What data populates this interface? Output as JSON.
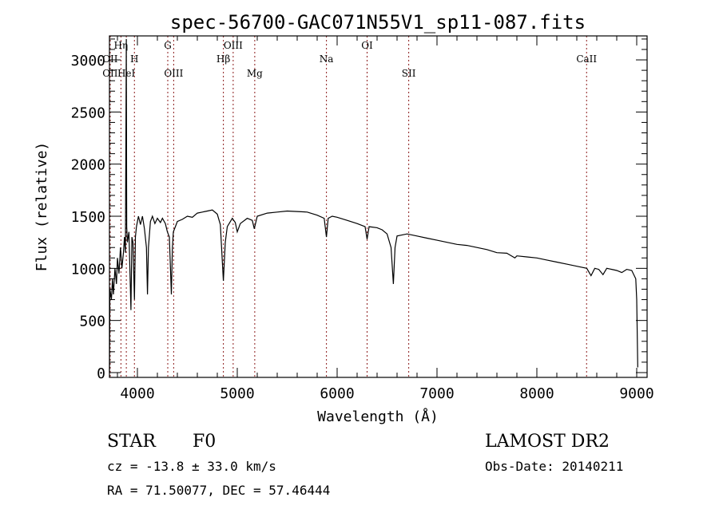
{
  "chart_data": {
    "type": "line",
    "title": "spec-56700-GAC071N55V1_sp11-087.fits",
    "xlabel": "Wavelength (Å)",
    "ylabel": "Flux (relative)",
    "xlim": [
      3720,
      9104
    ],
    "ylim": [
      -46,
      3230
    ],
    "xticks": [
      4000,
      5000,
      6000,
      7000,
      8000,
      9000
    ],
    "xtick_labels": [
      "4000",
      "5000",
      "6000",
      "7000",
      "8000",
      "9000"
    ],
    "yticks": [
      0,
      500,
      1000,
      1500,
      2000,
      2500,
      3000
    ],
    "ytick_labels": [
      "0",
      "500",
      "1000",
      "1500",
      "2000",
      "2500",
      "3000"
    ],
    "series": [
      {
        "name": "spectrum",
        "color": "#000000",
        "points": [
          [
            3720,
            0
          ],
          [
            3725,
            800
          ],
          [
            3740,
            700
          ],
          [
            3750,
            900
          ],
          [
            3760,
            750
          ],
          [
            3775,
            1000
          ],
          [
            3790,
            850
          ],
          [
            3800,
            1100
          ],
          [
            3815,
            950
          ],
          [
            3830,
            1200
          ],
          [
            3845,
            1000
          ],
          [
            3860,
            1150
          ],
          [
            3870,
            1300
          ],
          [
            3880,
            1150
          ],
          [
            3889,
            3200
          ],
          [
            3893,
            1400
          ],
          [
            3900,
            1250
          ],
          [
            3915,
            1350
          ],
          [
            3935,
            600
          ],
          [
            3945,
            1300
          ],
          [
            3955,
            1250
          ],
          [
            3970,
            700
          ],
          [
            3980,
            1300
          ],
          [
            3990,
            1400
          ],
          [
            4010,
            1500
          ],
          [
            4030,
            1420
          ],
          [
            4050,
            1500
          ],
          [
            4070,
            1380
          ],
          [
            4090,
            1200
          ],
          [
            4101,
            750
          ],
          [
            4110,
            1200
          ],
          [
            4130,
            1450
          ],
          [
            4150,
            1500
          ],
          [
            4175,
            1430
          ],
          [
            4200,
            1480
          ],
          [
            4230,
            1440
          ],
          [
            4250,
            1480
          ],
          [
            4280,
            1430
          ],
          [
            4300,
            1350
          ],
          [
            4320,
            1300
          ],
          [
            4340,
            750
          ],
          [
            4350,
            1200
          ],
          [
            4360,
            1350
          ],
          [
            4400,
            1450
          ],
          [
            4450,
            1470
          ],
          [
            4500,
            1500
          ],
          [
            4550,
            1490
          ],
          [
            4600,
            1530
          ],
          [
            4650,
            1540
          ],
          [
            4700,
            1550
          ],
          [
            4750,
            1560
          ],
          [
            4800,
            1520
          ],
          [
            4830,
            1420
          ],
          [
            4861,
            880
          ],
          [
            4880,
            1250
          ],
          [
            4900,
            1400
          ],
          [
            4950,
            1480
          ],
          [
            4980,
            1440
          ],
          [
            5000,
            1350
          ],
          [
            5030,
            1430
          ],
          [
            5100,
            1480
          ],
          [
            5150,
            1460
          ],
          [
            5170,
            1380
          ],
          [
            5200,
            1500
          ],
          [
            5300,
            1530
          ],
          [
            5400,
            1540
          ],
          [
            5500,
            1550
          ],
          [
            5600,
            1545
          ],
          [
            5700,
            1540
          ],
          [
            5800,
            1510
          ],
          [
            5870,
            1480
          ],
          [
            5893,
            1300
          ],
          [
            5910,
            1480
          ],
          [
            5950,
            1500
          ],
          [
            6000,
            1490
          ],
          [
            6100,
            1460
          ],
          [
            6200,
            1430
          ],
          [
            6280,
            1400
          ],
          [
            6300,
            1280
          ],
          [
            6320,
            1400
          ],
          [
            6400,
            1390
          ],
          [
            6450,
            1370
          ],
          [
            6500,
            1330
          ],
          [
            6540,
            1200
          ],
          [
            6563,
            850
          ],
          [
            6580,
            1200
          ],
          [
            6600,
            1310
          ],
          [
            6700,
            1330
          ],
          [
            6800,
            1310
          ],
          [
            6900,
            1290
          ],
          [
            7000,
            1270
          ],
          [
            7100,
            1250
          ],
          [
            7200,
            1230
          ],
          [
            7300,
            1220
          ],
          [
            7400,
            1200
          ],
          [
            7500,
            1180
          ],
          [
            7600,
            1150
          ],
          [
            7700,
            1145
          ],
          [
            7780,
            1100
          ],
          [
            7800,
            1120
          ],
          [
            7900,
            1110
          ],
          [
            8000,
            1100
          ],
          [
            8100,
            1080
          ],
          [
            8200,
            1060
          ],
          [
            8300,
            1040
          ],
          [
            8400,
            1020
          ],
          [
            8500,
            1000
          ],
          [
            8542,
            930
          ],
          [
            8580,
            1000
          ],
          [
            8620,
            990
          ],
          [
            8662,
            940
          ],
          [
            8700,
            1000
          ],
          [
            8750,
            990
          ],
          [
            8800,
            980
          ],
          [
            8850,
            960
          ],
          [
            8900,
            990
          ],
          [
            8950,
            980
          ],
          [
            8990,
            900
          ],
          [
            9000,
            700
          ],
          [
            9010,
            50
          ]
        ]
      }
    ],
    "line_markers": [
      {
        "label": "OII",
        "wave": 3727,
        "row": 2
      },
      {
        "label": "Hη",
        "wave": 3835,
        "row": 1
      },
      {
        "label": "OII",
        "wave": 3727,
        "row": 3
      },
      {
        "label": "HeI",
        "wave": 3889,
        "row": 3
      },
      {
        "label": "H",
        "wave": 3970,
        "row": 2
      },
      {
        "label": "G",
        "wave": 4304,
        "row": 1
      },
      {
        "label": "OIII",
        "wave": 4363,
        "row": 3
      },
      {
        "label": "Hβ",
        "wave": 4861,
        "row": 2
      },
      {
        "label": "OIII",
        "wave": 4959,
        "row": 1
      },
      {
        "label": "Mg",
        "wave": 5175,
        "row": 3
      },
      {
        "label": "Na",
        "wave": 5893,
        "row": 2
      },
      {
        "label": "OI",
        "wave": 6300,
        "row": 1
      },
      {
        "label": "SII",
        "wave": 6717,
        "row": 3
      },
      {
        "label": "CaII",
        "wave": 8498,
        "row": 2
      }
    ],
    "marker_color": "#8b1a1a",
    "grid": false
  },
  "info": {
    "class": "STAR",
    "subclass": "F0",
    "survey": "LAMOST DR2",
    "cz": "cz = -13.8 ± 33.0 km/s",
    "obs_date": "Obs-Date: 20140211",
    "radec": "RA =  71.50077, DEC =  57.46444"
  }
}
